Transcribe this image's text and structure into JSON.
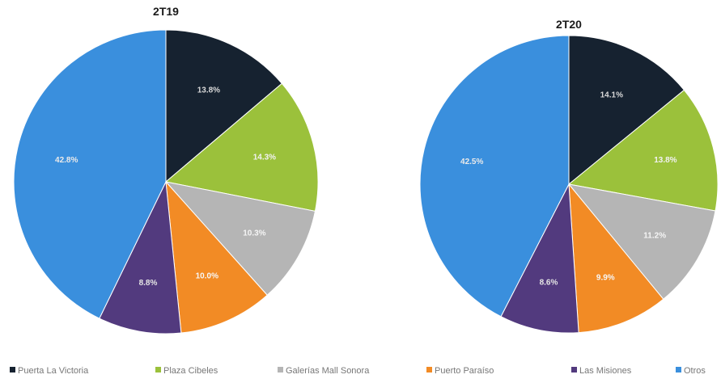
{
  "chart_data": [
    {
      "type": "pie",
      "title": "2T19",
      "start": "top",
      "direction": "clockwise",
      "slices": [
        {
          "label": "Puerta La Victoria",
          "value": 13.8,
          "display": "13.8%"
        },
        {
          "label": "Plaza Cibeles",
          "value": 14.3,
          "display": "14.3%"
        },
        {
          "label": "Galerías Mall Sonora",
          "value": 10.3,
          "display": "10.3%"
        },
        {
          "label": "Puerto Paraíso",
          "value": 10.0,
          "display": "10.0%"
        },
        {
          "label": "Las Misiones",
          "value": 8.8,
          "display": "8.8%"
        },
        {
          "label": "Otros",
          "value": 42.8,
          "display": "42.8%"
        }
      ]
    },
    {
      "type": "pie",
      "title": "2T20",
      "start": "top",
      "direction": "clockwise",
      "slices": [
        {
          "label": "Puerta La Victoria",
          "value": 14.1,
          "display": "14.1%"
        },
        {
          "label": "Plaza Cibeles",
          "value": 13.8,
          "display": "13.8%"
        },
        {
          "label": "Galerías Mall Sonora",
          "value": 11.2,
          "display": "11.2%"
        },
        {
          "label": "Puerto Paraíso",
          "value": 9.9,
          "display": "9.9%"
        },
        {
          "label": "Las Misiones",
          "value": 8.6,
          "display": "8.6%"
        },
        {
          "label": "Otros",
          "value": 42.5,
          "display": "42.5%"
        }
      ]
    }
  ],
  "legend": {
    "position": "bottom",
    "items": [
      {
        "label": "Puerta La Victoria",
        "color": "#162230"
      },
      {
        "label": "Plaza Cibeles",
        "color": "#9bc13b"
      },
      {
        "label": "Galerías Mall Sonora",
        "color": "#b5b5b5"
      },
      {
        "label": "Puerto Paraíso",
        "color": "#f28b25"
      },
      {
        "label": "Las Misiones",
        "color": "#523a7e"
      },
      {
        "label": "Otros",
        "color": "#3a8fdd"
      }
    ]
  },
  "label_colors": [
    "#d8d8d8",
    "#f2f2f2",
    "#f5f5f5",
    "#f7f7f7",
    "#e6e6e6",
    "#eaeaea"
  ]
}
